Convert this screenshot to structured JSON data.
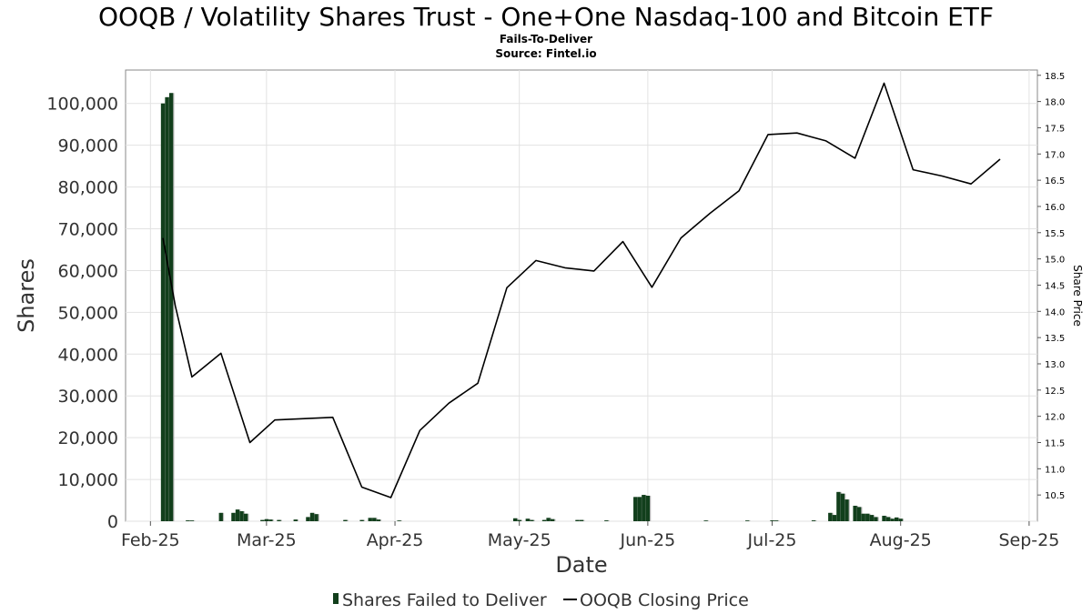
{
  "chart_data": {
    "type": "bar",
    "title": "OOQB / Volatility Shares Trust - One+One Nasdaq-100 and Bitcoin ETF",
    "subtitle_lines": [
      "Fails-To-Deliver",
      "Source: Fintel.io"
    ],
    "xlabel": "Date",
    "ylabel": "Shares",
    "y2label": "Share Price",
    "x_ticks": [
      "Feb-25",
      "Mar-25",
      "Apr-25",
      "May-25",
      "Jun-25",
      "Jul-25",
      "Aug-25",
      "Sep-25"
    ],
    "y_ticks": [
      "0",
      "10,000",
      "20,000",
      "30,000",
      "40,000",
      "50,000",
      "60,000",
      "70,000",
      "80,000",
      "90,000",
      "100,000"
    ],
    "y2_ticks": [
      "10.5",
      "11.0",
      "11.5",
      "12.0",
      "12.5",
      "13.0",
      "13.5",
      "14.0",
      "14.5",
      "15.0",
      "15.5",
      "16.0",
      "16.5",
      "17.0",
      "17.5",
      "18.0",
      "18.5"
    ],
    "ylim": [
      0,
      108000
    ],
    "y2lim": [
      10.0,
      18.6
    ],
    "xlim": [
      "2025-01-26",
      "2025-09-03"
    ],
    "grid": true,
    "legend_position": "bottom",
    "series": [
      {
        "name": "Shares Failed to Deliver",
        "type": "bar",
        "color": "#123f1c",
        "points": [
          {
            "date": "2025-02-04",
            "value": 100000
          },
          {
            "date": "2025-02-05",
            "value": 101500
          },
          {
            "date": "2025-02-06",
            "value": 102500
          },
          {
            "date": "2025-02-10",
            "value": 200
          },
          {
            "date": "2025-02-11",
            "value": 150
          },
          {
            "date": "2025-02-18",
            "value": 2000
          },
          {
            "date": "2025-02-21",
            "value": 2000
          },
          {
            "date": "2025-02-22",
            "value": 2800
          },
          {
            "date": "2025-02-23",
            "value": 2400
          },
          {
            "date": "2025-02-24",
            "value": 1800
          },
          {
            "date": "2025-02-28",
            "value": 300
          },
          {
            "date": "2025-03-01",
            "value": 500
          },
          {
            "date": "2025-03-02",
            "value": 400
          },
          {
            "date": "2025-03-04",
            "value": 300
          },
          {
            "date": "2025-03-08",
            "value": 400
          },
          {
            "date": "2025-03-11",
            "value": 1000
          },
          {
            "date": "2025-03-12",
            "value": 2000
          },
          {
            "date": "2025-03-13",
            "value": 1700
          },
          {
            "date": "2025-03-20",
            "value": 300
          },
          {
            "date": "2025-03-24",
            "value": 300
          },
          {
            "date": "2025-03-26",
            "value": 800
          },
          {
            "date": "2025-03-27",
            "value": 800
          },
          {
            "date": "2025-03-28",
            "value": 400
          },
          {
            "date": "2025-04-02",
            "value": 100
          },
          {
            "date": "2025-04-30",
            "value": 700
          },
          {
            "date": "2025-05-01",
            "value": 300
          },
          {
            "date": "2025-05-03",
            "value": 600
          },
          {
            "date": "2025-05-04",
            "value": 300
          },
          {
            "date": "2025-05-07",
            "value": 300
          },
          {
            "date": "2025-05-08",
            "value": 800
          },
          {
            "date": "2025-05-09",
            "value": 500
          },
          {
            "date": "2025-05-15",
            "value": 300
          },
          {
            "date": "2025-05-16",
            "value": 300
          },
          {
            "date": "2025-05-22",
            "value": 200
          },
          {
            "date": "2025-05-29",
            "value": 5800
          },
          {
            "date": "2025-05-30",
            "value": 5800
          },
          {
            "date": "2025-05-31",
            "value": 6300
          },
          {
            "date": "2025-06-01",
            "value": 6100
          },
          {
            "date": "2025-06-15",
            "value": 150
          },
          {
            "date": "2025-06-25",
            "value": 150
          },
          {
            "date": "2025-07-01",
            "value": 200
          },
          {
            "date": "2025-07-02",
            "value": 150
          },
          {
            "date": "2025-07-11",
            "value": 200
          },
          {
            "date": "2025-07-15",
            "value": 2000
          },
          {
            "date": "2025-07-16",
            "value": 1500
          },
          {
            "date": "2025-07-17",
            "value": 7000
          },
          {
            "date": "2025-07-18",
            "value": 6600
          },
          {
            "date": "2025-07-19",
            "value": 5200
          },
          {
            "date": "2025-07-21",
            "value": 3700
          },
          {
            "date": "2025-07-22",
            "value": 3400
          },
          {
            "date": "2025-07-23",
            "value": 1800
          },
          {
            "date": "2025-07-24",
            "value": 1800
          },
          {
            "date": "2025-07-25",
            "value": 1500
          },
          {
            "date": "2025-07-26",
            "value": 1000
          },
          {
            "date": "2025-07-28",
            "value": 1300
          },
          {
            "date": "2025-07-29",
            "value": 1000
          },
          {
            "date": "2025-07-30",
            "value": 600
          },
          {
            "date": "2025-07-31",
            "value": 900
          },
          {
            "date": "2025-08-01",
            "value": 600
          }
        ]
      },
      {
        "name": "OOQB Closing Price",
        "type": "line",
        "color": "#000000",
        "points": [
          {
            "date": "2025-02-04",
            "value": 15.4
          },
          {
            "date": "2025-02-07",
            "value": 14.1
          },
          {
            "date": "2025-02-11",
            "value": 12.75
          },
          {
            "date": "2025-02-18",
            "value": 13.2
          },
          {
            "date": "2025-02-25",
            "value": 11.5
          },
          {
            "date": "2025-03-03",
            "value": 11.93
          },
          {
            "date": "2025-03-17",
            "value": 11.98
          },
          {
            "date": "2025-03-24",
            "value": 10.65
          },
          {
            "date": "2025-03-31",
            "value": 10.45
          },
          {
            "date": "2025-04-07",
            "value": 11.73
          },
          {
            "date": "2025-04-14",
            "value": 12.25
          },
          {
            "date": "2025-04-21",
            "value": 12.63
          },
          {
            "date": "2025-04-28",
            "value": 14.45
          },
          {
            "date": "2025-05-05",
            "value": 14.97
          },
          {
            "date": "2025-05-12",
            "value": 14.83
          },
          {
            "date": "2025-05-19",
            "value": 14.77
          },
          {
            "date": "2025-05-26",
            "value": 15.33
          },
          {
            "date": "2025-06-02",
            "value": 14.46
          },
          {
            "date": "2025-06-09",
            "value": 15.4
          },
          {
            "date": "2025-06-16",
            "value": 15.87
          },
          {
            "date": "2025-06-23",
            "value": 16.3
          },
          {
            "date": "2025-06-30",
            "value": 17.37
          },
          {
            "date": "2025-07-07",
            "value": 17.4
          },
          {
            "date": "2025-07-14",
            "value": 17.25
          },
          {
            "date": "2025-07-21",
            "value": 16.92
          },
          {
            "date": "2025-07-28",
            "value": 18.35
          },
          {
            "date": "2025-08-04",
            "value": 16.7
          },
          {
            "date": "2025-08-11",
            "value": 16.58
          },
          {
            "date": "2025-08-18",
            "value": 16.43
          },
          {
            "date": "2025-08-25",
            "value": 16.9
          }
        ]
      }
    ]
  }
}
